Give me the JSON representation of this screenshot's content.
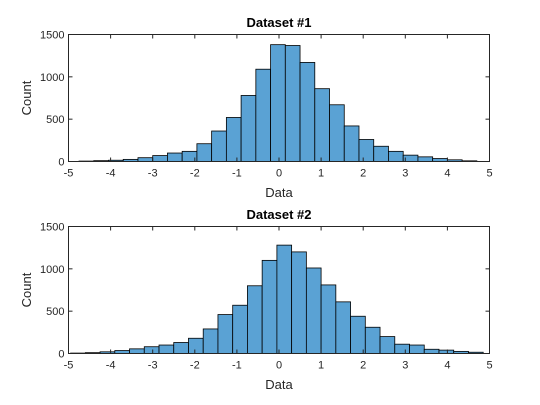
{
  "chart_data": [
    {
      "type": "bar",
      "title": "Dataset #1",
      "xlabel": "Data",
      "ylabel": "Count",
      "xlim": [
        -5,
        5
      ],
      "ylim": [
        0,
        1500
      ],
      "xticks": [
        "-5",
        "-4",
        "-3",
        "-2",
        "-1",
        "0",
        "1",
        "2",
        "3",
        "4",
        "5"
      ],
      "yticks": [
        "0",
        "500",
        "1000",
        "1500"
      ],
      "bin_edges": [
        -4.75,
        -4.4,
        -4.05,
        -3.7,
        -3.35,
        -3.0,
        -2.65,
        -2.3,
        -1.95,
        -1.6,
        -1.25,
        -0.9,
        -0.55,
        -0.2,
        0.15,
        0.5,
        0.85,
        1.2,
        1.55,
        1.9,
        2.25,
        2.6,
        2.95,
        3.3,
        3.65,
        4.0,
        4.35,
        4.7
      ],
      "values": [
        5,
        10,
        15,
        25,
        45,
        70,
        100,
        120,
        210,
        360,
        520,
        780,
        1090,
        1380,
        1370,
        1170,
        860,
        670,
        420,
        260,
        180,
        120,
        75,
        55,
        35,
        20,
        8
      ],
      "grid": false,
      "bar_color": "#5aa2d4"
    },
    {
      "type": "bar",
      "title": "Dataset #2",
      "xlabel": "Data",
      "ylabel": "Count",
      "xlim": [
        -5,
        5
      ],
      "ylim": [
        0,
        1500
      ],
      "xticks": [
        "-5",
        "-4",
        "-3",
        "-2",
        "-1",
        "0",
        "1",
        "2",
        "3",
        "4",
        "5"
      ],
      "yticks": [
        "0",
        "500",
        "1000",
        "1500"
      ],
      "bin_edges": [
        -4.95,
        -4.6,
        -4.25,
        -3.9,
        -3.55,
        -3.2,
        -2.85,
        -2.5,
        -2.15,
        -1.8,
        -1.45,
        -1.1,
        -0.75,
        -0.4,
        -0.05,
        0.3,
        0.65,
        1.0,
        1.35,
        1.7,
        2.05,
        2.4,
        2.75,
        3.1,
        3.45,
        3.8,
        4.15,
        4.5,
        4.85
      ],
      "values": [
        5,
        10,
        20,
        35,
        55,
        80,
        100,
        130,
        180,
        290,
        460,
        570,
        800,
        1100,
        1280,
        1200,
        1010,
        810,
        610,
        440,
        310,
        200,
        110,
        100,
        50,
        40,
        25,
        15
      ],
      "grid": false,
      "bar_color": "#5aa2d4"
    }
  ]
}
